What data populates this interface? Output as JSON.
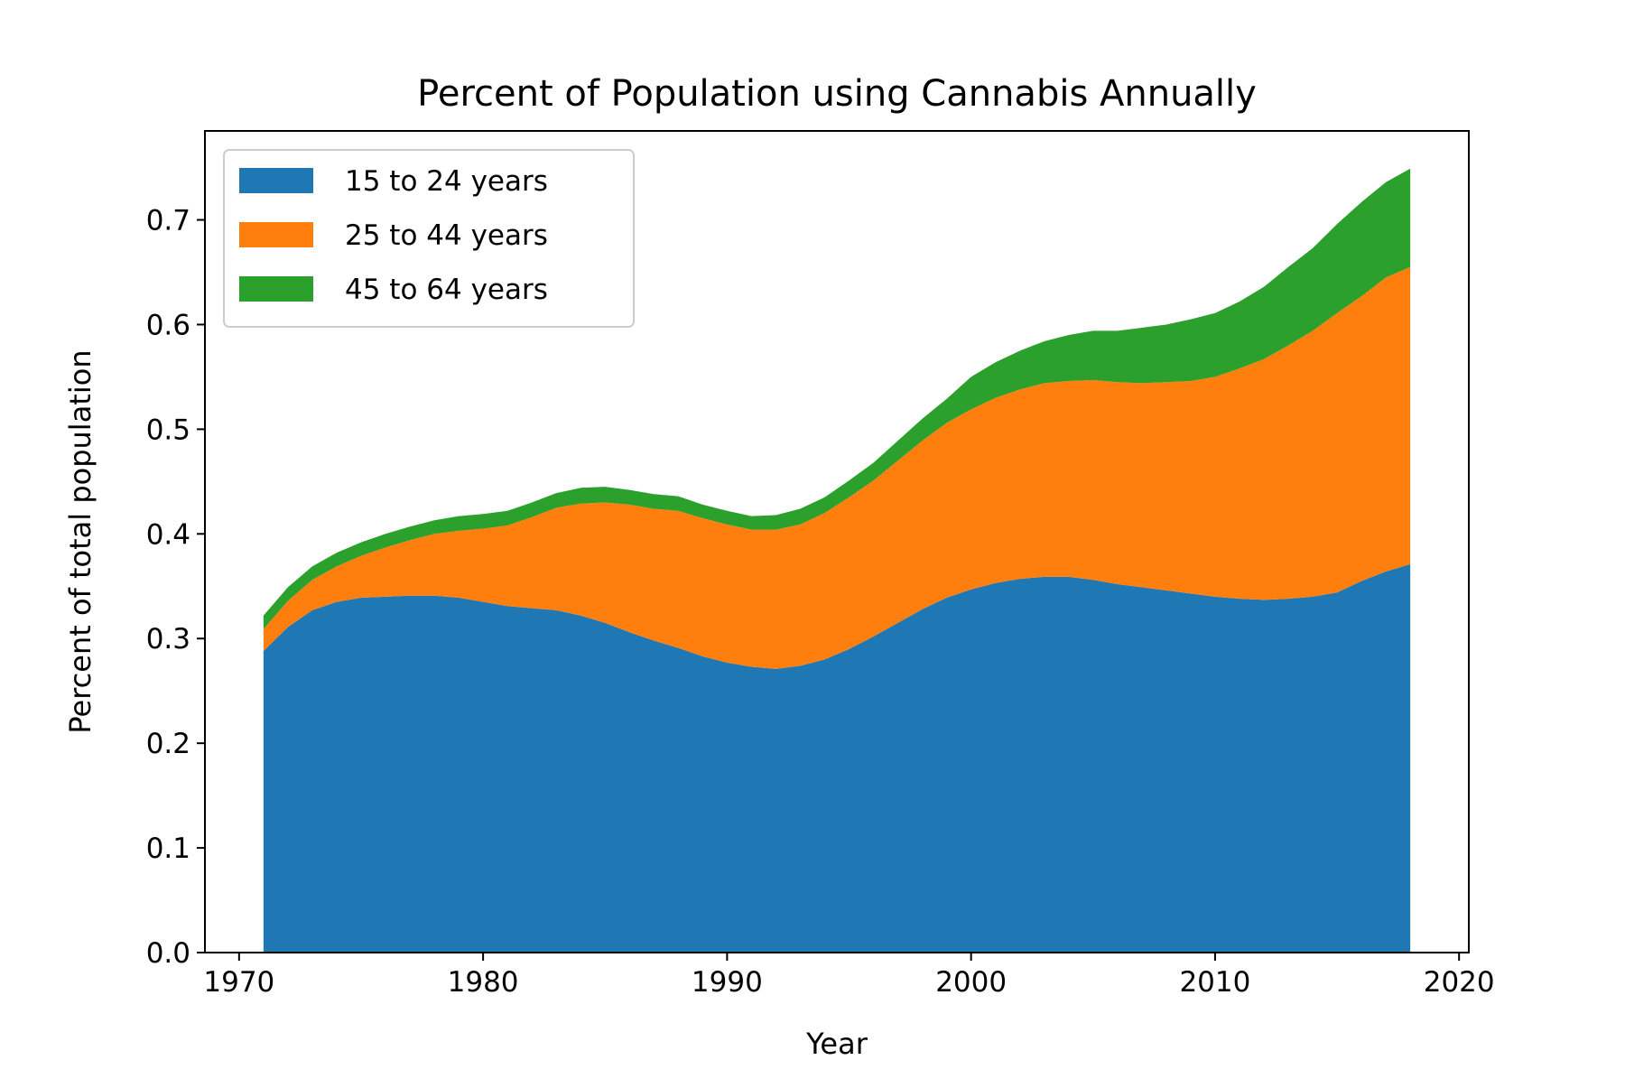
{
  "chart_data": {
    "type": "area",
    "stacked": true,
    "title": "Percent of Population using Cannabis Annually",
    "xlabel": "Year",
    "ylabel": "Percent of total population",
    "xlim": [
      1968.6,
      2020.4
    ],
    "ylim": [
      0.0,
      0.785
    ],
    "x_ticks": [
      1970,
      1980,
      1990,
      2000,
      2010,
      2020
    ],
    "x_tick_labels": [
      "1970",
      "1980",
      "1990",
      "2000",
      "2010",
      "2020"
    ],
    "y_ticks": [
      0.0,
      0.1,
      0.2,
      0.3,
      0.4,
      0.5,
      0.6,
      0.7
    ],
    "y_tick_labels": [
      "0.0",
      "0.1",
      "0.2",
      "0.3",
      "0.4",
      "0.5",
      "0.6",
      "0.7"
    ],
    "grid": false,
    "legend_position": "upper-left",
    "x": [
      1971,
      1972,
      1973,
      1974,
      1975,
      1976,
      1977,
      1978,
      1979,
      1980,
      1981,
      1982,
      1983,
      1984,
      1985,
      1986,
      1987,
      1988,
      1989,
      1990,
      1991,
      1992,
      1993,
      1994,
      1995,
      1996,
      1997,
      1998,
      1999,
      2000,
      2001,
      2002,
      2003,
      2004,
      2005,
      2006,
      2007,
      2008,
      2009,
      2010,
      2011,
      2012,
      2013,
      2014,
      2015,
      2016,
      2017,
      2018
    ],
    "series": [
      {
        "name": "15 to 24 years",
        "color": "#1f77b4",
        "values": [
          0.288,
          0.311,
          0.327,
          0.335,
          0.339,
          0.34,
          0.341,
          0.341,
          0.339,
          0.335,
          0.331,
          0.329,
          0.327,
          0.322,
          0.315,
          0.306,
          0.298,
          0.291,
          0.283,
          0.277,
          0.273,
          0.271,
          0.274,
          0.28,
          0.29,
          0.302,
          0.315,
          0.328,
          0.339,
          0.347,
          0.353,
          0.357,
          0.359,
          0.359,
          0.356,
          0.352,
          0.349,
          0.346,
          0.343,
          0.34,
          0.338,
          0.337,
          0.338,
          0.34,
          0.344,
          0.355,
          0.364,
          0.371
        ]
      },
      {
        "name": "25 to 44 years",
        "color": "#ff7f0e",
        "values": [
          0.021,
          0.025,
          0.029,
          0.034,
          0.04,
          0.047,
          0.053,
          0.059,
          0.064,
          0.07,
          0.077,
          0.087,
          0.098,
          0.107,
          0.115,
          0.122,
          0.126,
          0.131,
          0.132,
          0.132,
          0.131,
          0.133,
          0.135,
          0.14,
          0.145,
          0.149,
          0.155,
          0.161,
          0.167,
          0.172,
          0.177,
          0.181,
          0.185,
          0.187,
          0.191,
          0.193,
          0.195,
          0.199,
          0.203,
          0.21,
          0.22,
          0.23,
          0.242,
          0.254,
          0.267,
          0.272,
          0.281,
          0.284
        ]
      },
      {
        "name": "45 to 64 years",
        "color": "#2ca02c",
        "values": [
          0.013,
          0.013,
          0.013,
          0.013,
          0.013,
          0.013,
          0.013,
          0.013,
          0.014,
          0.014,
          0.014,
          0.014,
          0.014,
          0.015,
          0.015,
          0.014,
          0.014,
          0.014,
          0.013,
          0.013,
          0.013,
          0.014,
          0.015,
          0.015,
          0.016,
          0.017,
          0.019,
          0.021,
          0.023,
          0.031,
          0.034,
          0.037,
          0.04,
          0.044,
          0.047,
          0.049,
          0.053,
          0.055,
          0.059,
          0.061,
          0.064,
          0.069,
          0.075,
          0.079,
          0.085,
          0.09,
          0.091,
          0.094
        ]
      }
    ]
  }
}
